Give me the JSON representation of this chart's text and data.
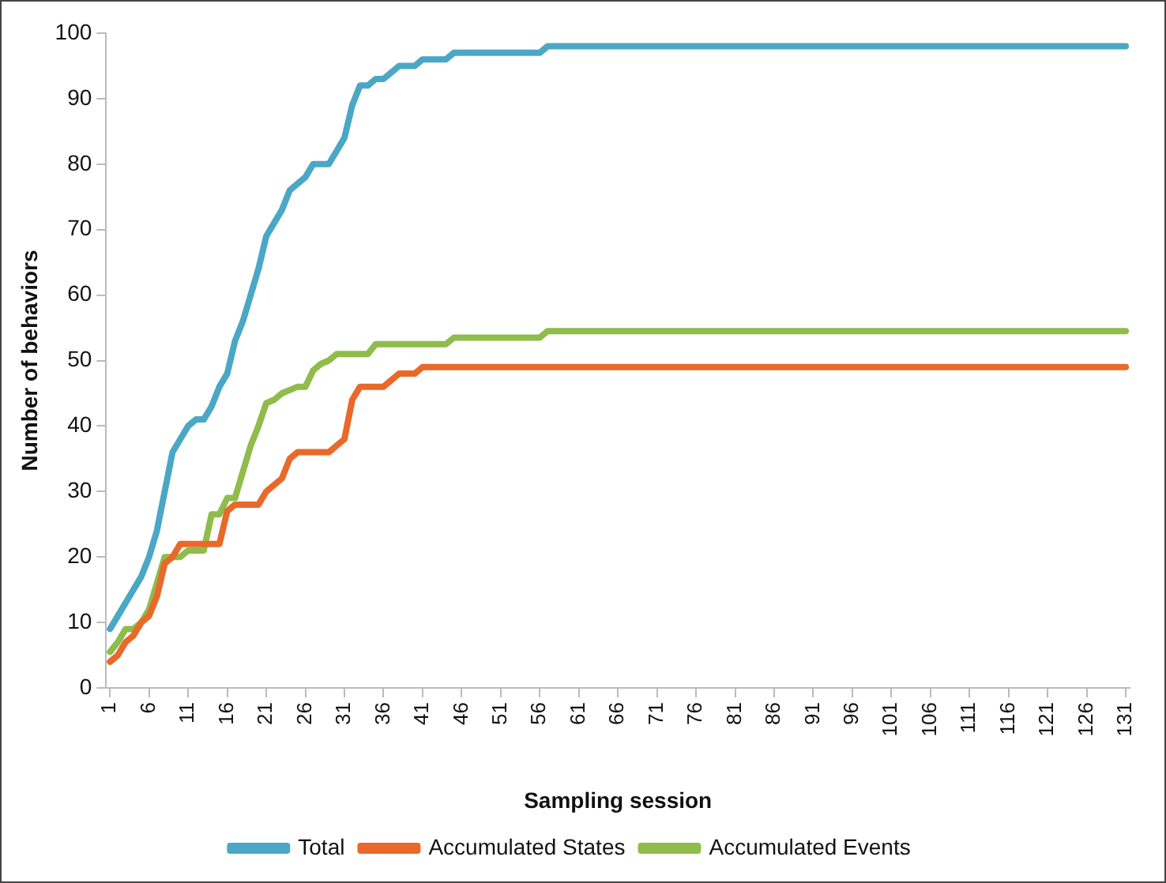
{
  "chart_data": {
    "type": "line",
    "xlabel": "Sampling session",
    "ylabel": "Number of behaviors",
    "categories": [
      "1",
      null,
      null,
      null,
      null,
      "6",
      null,
      null,
      null,
      null,
      "11",
      null,
      null,
      null,
      null,
      "16",
      null,
      null,
      null,
      null,
      "21",
      null,
      null,
      null,
      null,
      "26",
      null,
      null,
      null,
      null,
      "31",
      null,
      null,
      null,
      null,
      "36",
      null,
      null,
      null,
      null,
      "41",
      null,
      null,
      null,
      null,
      "46",
      null,
      null,
      null,
      null,
      "51",
      null,
      null,
      null,
      null,
      "56",
      null,
      null,
      null,
      null,
      "61",
      null,
      null,
      null,
      null,
      "66",
      null,
      null,
      null,
      null,
      "71",
      null,
      null,
      null,
      null,
      "76",
      null,
      null,
      null,
      null,
      "81",
      null,
      null,
      null,
      null,
      "86",
      null,
      null,
      null,
      null,
      "91",
      null,
      null,
      null,
      null,
      "96",
      null,
      null,
      null,
      null,
      "101",
      null,
      null,
      null,
      null,
      "106",
      null,
      null,
      null,
      null,
      "111",
      null,
      null,
      null,
      null,
      "116",
      null,
      null,
      null,
      null,
      "121",
      null,
      null,
      null,
      null,
      "126",
      null,
      null,
      null,
      null,
      "131"
    ],
    "series": [
      {
        "name": "Total",
        "color": "#4aa7c5",
        "values": [
          9,
          11,
          13,
          15,
          17,
          20,
          24,
          30,
          36,
          38,
          40,
          41,
          41,
          43,
          46,
          48,
          53,
          56,
          60,
          64,
          69,
          71,
          73,
          76,
          77,
          78,
          80,
          80,
          80,
          82,
          84,
          89,
          92,
          92,
          93,
          93,
          94,
          95,
          95,
          95,
          96,
          96,
          96,
          96,
          97,
          97,
          97,
          97,
          97,
          97,
          97,
          97,
          97,
          97,
          97,
          97,
          98,
          98,
          98,
          98,
          98,
          98,
          98,
          98,
          98,
          98,
          98,
          98,
          98,
          98,
          98,
          98,
          98,
          98,
          98,
          98,
          98,
          98,
          98,
          98,
          98,
          98,
          98,
          98,
          98,
          98,
          98,
          98,
          98,
          98,
          98,
          98,
          98,
          98,
          98,
          98,
          98,
          98,
          98,
          98,
          98,
          98,
          98,
          98,
          98,
          98,
          98,
          98,
          98,
          98,
          98,
          98,
          98,
          98,
          98,
          98,
          98,
          98,
          98,
          98,
          98,
          98,
          98,
          98,
          98,
          98,
          98,
          98,
          98,
          98,
          98
        ]
      },
      {
        "name": "Accumulated States",
        "color": "#e8692a",
        "values": [
          4,
          5,
          7,
          8,
          10,
          11,
          14,
          19,
          20,
          22,
          22,
          22,
          22,
          22,
          22,
          27,
          28,
          28,
          28,
          28,
          30,
          31,
          32,
          35,
          36,
          36,
          36,
          36,
          36,
          37,
          38,
          44,
          46,
          46,
          46,
          46,
          47,
          48,
          48,
          48,
          49,
          49,
          49,
          49,
          49,
          49,
          49,
          49,
          49,
          49,
          49,
          49,
          49,
          49,
          49,
          49,
          49,
          49,
          49,
          49,
          49,
          49,
          49,
          49,
          49,
          49,
          49,
          49,
          49,
          49,
          49,
          49,
          49,
          49,
          49,
          49,
          49,
          49,
          49,
          49,
          49,
          49,
          49,
          49,
          49,
          49,
          49,
          49,
          49,
          49,
          49,
          49,
          49,
          49,
          49,
          49,
          49,
          49,
          49,
          49,
          49,
          49,
          49,
          49,
          49,
          49,
          49,
          49,
          49,
          49,
          49,
          49,
          49,
          49,
          49,
          49,
          49,
          49,
          49,
          49,
          49,
          49,
          49,
          49,
          49,
          49,
          49,
          49,
          49,
          49,
          49
        ]
      },
      {
        "name": "Accumulated Events",
        "color": "#8fbc4b",
        "values": [
          5.5,
          7,
          9,
          9,
          10,
          12,
          16,
          20,
          20,
          20,
          21,
          21,
          21,
          26.5,
          26.5,
          29,
          29,
          33,
          37,
          40,
          43.5,
          44,
          45,
          45.5,
          46,
          46,
          48.5,
          49.5,
          50,
          51,
          51,
          51,
          51,
          51,
          52.5,
          52.5,
          52.5,
          52.5,
          52.5,
          52.5,
          52.5,
          52.5,
          52.5,
          52.5,
          53.5,
          53.5,
          53.5,
          53.5,
          53.5,
          53.5,
          53.5,
          53.5,
          53.5,
          53.5,
          53.5,
          53.5,
          54.5,
          54.5,
          54.5,
          54.5,
          54.5,
          54.5,
          54.5,
          54.5,
          54.5,
          54.5,
          54.5,
          54.5,
          54.5,
          54.5,
          54.5,
          54.5,
          54.5,
          54.5,
          54.5,
          54.5,
          54.5,
          54.5,
          54.5,
          54.5,
          54.5,
          54.5,
          54.5,
          54.5,
          54.5,
          54.5,
          54.5,
          54.5,
          54.5,
          54.5,
          54.5,
          54.5,
          54.5,
          54.5,
          54.5,
          54.5,
          54.5,
          54.5,
          54.5,
          54.5,
          54.5,
          54.5,
          54.5,
          54.5,
          54.5,
          54.5,
          54.5,
          54.5,
          54.5,
          54.5,
          54.5,
          54.5,
          54.5,
          54.5,
          54.5,
          54.5,
          54.5,
          54.5,
          54.5,
          54.5,
          54.5,
          54.5,
          54.5,
          54.5,
          54.5,
          54.5,
          54.5,
          54.5,
          54.5,
          54.5,
          54.5
        ]
      }
    ],
    "ylim": [
      0,
      100
    ],
    "yticks": [
      0,
      10,
      20,
      30,
      40,
      50,
      60,
      70,
      80,
      90,
      100
    ],
    "grid": false,
    "legend": "bottom",
    "marker": "none",
    "line_style": "solid"
  }
}
